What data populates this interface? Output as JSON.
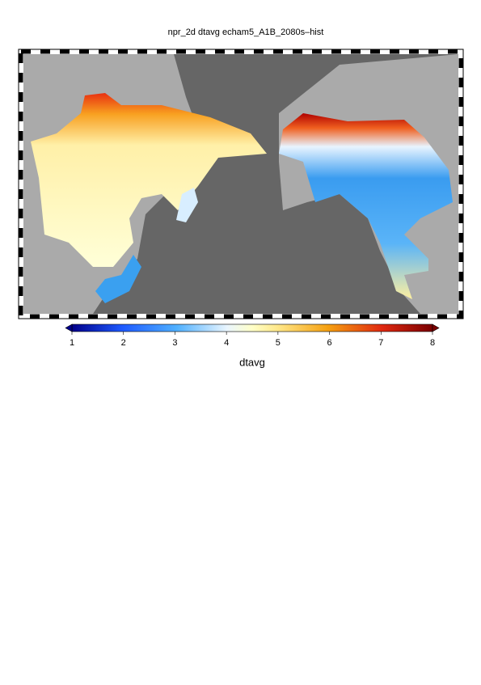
{
  "title": "npr_2d dtavg echam5_A1B_2080s–hist",
  "colorbar": {
    "label": "dtavg",
    "range": [
      1,
      8
    ],
    "ticks": [
      1,
      2,
      3,
      4,
      5,
      6,
      7,
      8
    ]
  }
}
